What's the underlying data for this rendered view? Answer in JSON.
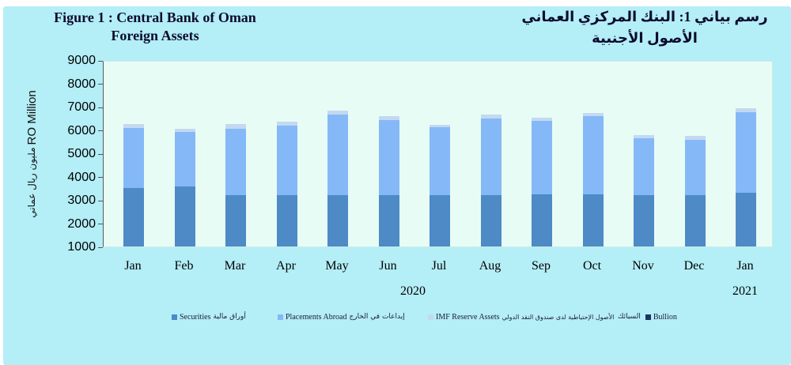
{
  "titles": {
    "en_line1": "Figure 1 : Central Bank of Oman",
    "en_line2": "Foreign Assets",
    "ar_line1": "رسم بياني 1: البنك المركزي العماني",
    "ar_line2": "الأصول الأجنبية"
  },
  "axis": {
    "ylabel_en": "RO Million",
    "ylabel_ar": "مليون ريال عماني"
  },
  "chart_data": {
    "type": "bar",
    "stacked": true,
    "title": "Central Bank of Oman Foreign Assets",
    "ylabel": "RO Million / مليون ريال عماني",
    "ylim": [
      1000,
      9000
    ],
    "yticks": [
      9000,
      8000,
      7000,
      6000,
      5000,
      4000,
      3000,
      2000,
      1000
    ],
    "grid": false,
    "legend_position": "bottom",
    "categories": [
      "Jan",
      "Feb",
      "Mar",
      "Apr",
      "May",
      "Jun",
      "Jul",
      "Aug",
      "Sep",
      "Oct",
      "Nov",
      "Dec",
      "Jan"
    ],
    "year_labels": [
      {
        "label": "2020",
        "span": [
          0,
          11
        ]
      },
      {
        "label": "2021",
        "span": [
          12,
          12
        ]
      }
    ],
    "series": [
      {
        "name": "Securities",
        "name_ar": "أوراق مالية",
        "color": "#4d8ac6",
        "values": [
          3520,
          3560,
          3210,
          3210,
          3220,
          3190,
          3210,
          3210,
          3230,
          3230,
          3220,
          3220,
          3320
        ]
      },
      {
        "name": "Placements Abroad",
        "name_ar": "إيداعات في الخارج",
        "color": "#85b8f7",
        "values": [
          2550,
          2360,
          2850,
          2970,
          3440,
          3250,
          2920,
          3280,
          3150,
          3350,
          2410,
          2370,
          3460
        ]
      },
      {
        "name": "IMF Reserve Assets",
        "name_ar": "الأصول الإحتياطية لدى صندوق النقد الدولي",
        "color": "#c3d9f0",
        "values": [
          190,
          140,
          180,
          170,
          170,
          150,
          100,
          160,
          140,
          160,
          140,
          160,
          170
        ]
      },
      {
        "name": "Bullion",
        "name_ar": "السبائك",
        "color": "#17375e",
        "values": [
          0,
          0,
          0,
          0,
          0,
          0,
          0,
          0,
          0,
          0,
          0,
          0,
          0
        ],
        "note": "segment not visibly distinguishable in chart (below axis minimum)"
      }
    ],
    "totals_visible": [
      6260,
      6060,
      6240,
      6350,
      6830,
      6590,
      6230,
      6650,
      6520,
      6740,
      5770,
      5750,
      6950
    ]
  }
}
